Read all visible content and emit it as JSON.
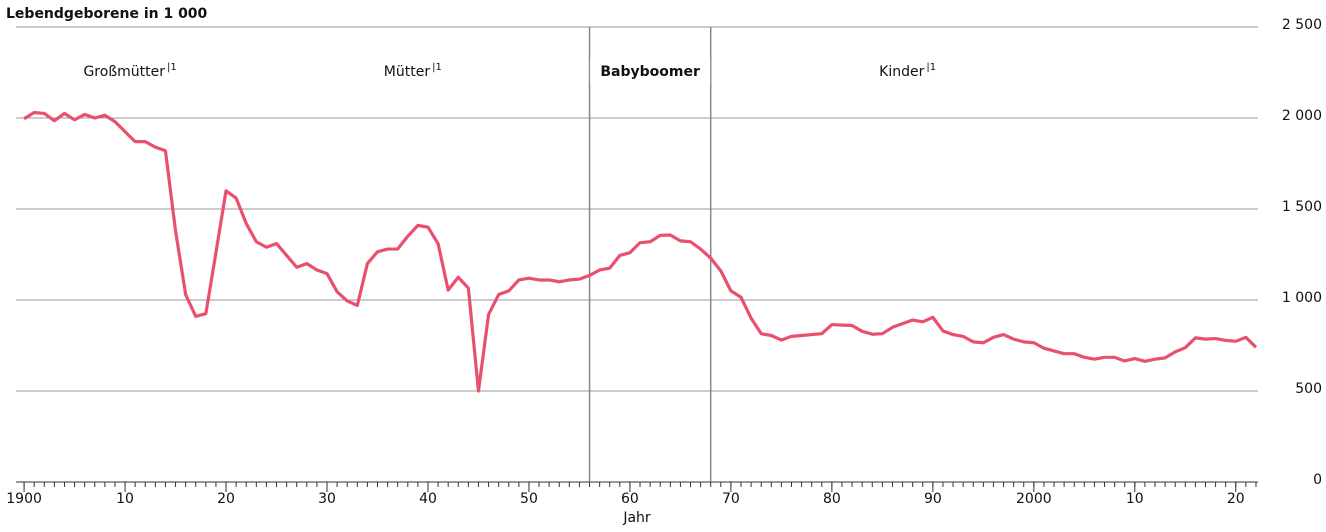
{
  "chart_data": {
    "type": "line",
    "y_axis_label": "Lebendgeborene in 1 000",
    "x_axis_label": "Jahr",
    "x": [
      1900,
      1901,
      1902,
      1903,
      1904,
      1905,
      1906,
      1907,
      1908,
      1909,
      1910,
      1911,
      1912,
      1913,
      1914,
      1915,
      1916,
      1917,
      1918,
      1919,
      1920,
      1921,
      1922,
      1923,
      1924,
      1925,
      1926,
      1927,
      1928,
      1929,
      1930,
      1931,
      1932,
      1933,
      1934,
      1935,
      1936,
      1937,
      1938,
      1939,
      1940,
      1941,
      1942,
      1943,
      1944,
      1945,
      1946,
      1947,
      1948,
      1949,
      1950,
      1951,
      1952,
      1953,
      1954,
      1955,
      1956,
      1957,
      1958,
      1959,
      1960,
      1961,
      1962,
      1963,
      1964,
      1965,
      1966,
      1967,
      1968,
      1969,
      1970,
      1971,
      1972,
      1973,
      1974,
      1975,
      1976,
      1977,
      1978,
      1979,
      1980,
      1981,
      1982,
      1983,
      1984,
      1985,
      1986,
      1987,
      1988,
      1989,
      1990,
      1991,
      1992,
      1993,
      1994,
      1995,
      1996,
      1997,
      1998,
      1999,
      2000,
      2001,
      2002,
      2003,
      2004,
      2005,
      2006,
      2007,
      2008,
      2009,
      2010,
      2011,
      2012,
      2013,
      2014,
      2015,
      2016,
      2017,
      2018,
      2019,
      2020,
      2021,
      2022
    ],
    "series": [
      {
        "color": "#e8506e",
        "values": [
          1996,
          2030,
          2025,
          1985,
          2025,
          1990,
          2020,
          2000,
          2015,
          1980,
          1925,
          1870,
          1870,
          1840,
          1820,
          1380,
          1030,
          910,
          925,
          1260,
          1600,
          1560,
          1420,
          1320,
          1290,
          1310,
          1245,
          1180,
          1200,
          1165,
          1145,
          1045,
          995,
          970,
          1200,
          1265,
          1280,
          1280,
          1350,
          1410,
          1400,
          1310,
          1055,
          1125,
          1065,
          500,
          920,
          1030,
          1050,
          1110,
          1120,
          1110,
          1110,
          1100,
          1110,
          1115,
          1135,
          1165,
          1175,
          1245,
          1260,
          1315,
          1320,
          1355,
          1357,
          1325,
          1320,
          1280,
          1230,
          1160,
          1050,
          1015,
          900,
          815,
          805,
          780,
          800,
          805,
          810,
          815,
          865,
          862,
          860,
          828,
          812,
          815,
          850,
          870,
          890,
          880,
          905,
          830,
          810,
          800,
          770,
          765,
          795,
          810,
          785,
          770,
          765,
          735,
          720,
          705,
          705,
          685,
          675,
          685,
          685,
          665,
          678,
          663,
          675,
          682,
          715,
          738,
          792,
          785,
          788,
          778,
          773,
          795,
          740
        ]
      }
    ],
    "xlim": [
      1899.2,
      2022.2
    ],
    "xticks": [
      {
        "value": 1900,
        "label": "1900"
      },
      {
        "value": 1910,
        "label": "10"
      },
      {
        "value": 1920,
        "label": "20"
      },
      {
        "value": 1930,
        "label": "30"
      },
      {
        "value": 1940,
        "label": "40"
      },
      {
        "value": 1950,
        "label": "50"
      },
      {
        "value": 1960,
        "label": "60"
      },
      {
        "value": 1970,
        "label": "70"
      },
      {
        "value": 1980,
        "label": "80"
      },
      {
        "value": 1990,
        "label": "90"
      },
      {
        "value": 2000,
        "label": "2000"
      },
      {
        "value": 2010,
        "label": "10"
      },
      {
        "value": 2020,
        "label": "20"
      }
    ],
    "x_minor_tick_step": 1,
    "ylim": [
      0,
      2500
    ],
    "yticks": [
      0,
      500,
      {
        "value": 1000,
        "label": "1 000"
      },
      {
        "value": 1500,
        "label": "1 500"
      },
      {
        "value": 2000,
        "label": "2 000"
      },
      {
        "value": 2500,
        "label": "2 500"
      }
    ],
    "grid": true,
    "dividers": [
      1956,
      1968
    ],
    "regions": [
      {
        "label": "Großmütter",
        "footnote": "|1",
        "x": 1910.5
      },
      {
        "label": "Mütter",
        "footnote": "|1",
        "x": 1938.5
      },
      {
        "label": "Babyboomer",
        "bold": true,
        "x": 1962
      },
      {
        "label": "Kinder",
        "footnote": "|1",
        "x": 1987.5
      }
    ]
  }
}
